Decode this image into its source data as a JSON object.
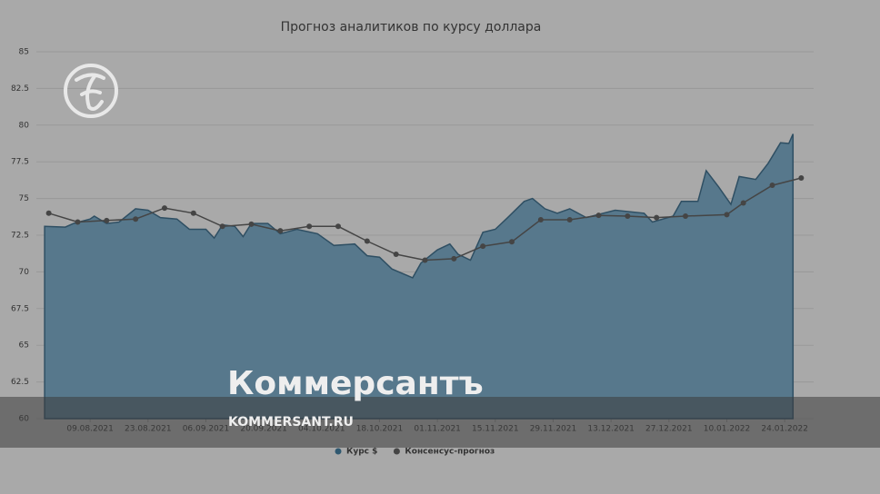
{
  "chart_data": {
    "type": "area-line",
    "title": "Прогноз аналитиков по курсу доллара",
    "xlim": [
      "27.07.2021",
      "31.01.2022"
    ],
    "xticks": [
      "09.08.2021",
      "23.08.2021",
      "06.09.2021",
      "20.09.2021",
      "04.10.2021",
      "18.10.2021",
      "01.11.2021",
      "15.11.2021",
      "29.11.2021",
      "13.12.2021",
      "27.12.2021",
      "10.01.2022",
      "24.01.2022"
    ],
    "ylim": [
      60,
      85
    ],
    "yticks": [
      60,
      62.5,
      65,
      67.5,
      70,
      72.5,
      75,
      77.5,
      80,
      82.5,
      85
    ],
    "grid": true,
    "series": [
      {
        "name": "Курс $",
        "color": "#57788c",
        "style": "area",
        "x": [
          "29.07.2021",
          "03.08.2021",
          "05.08.2021",
          "09.08.2021",
          "10.08.2021",
          "13.08.2021",
          "16.08.2021",
          "20.08.2021",
          "23.08.2021",
          "26.08.2021",
          "30.08.2021",
          "02.09.2021",
          "06.09.2021",
          "08.09.2021",
          "10.09.2021",
          "13.09.2021",
          "15.09.2021",
          "17.09.2021",
          "21.09.2021",
          "24.09.2021",
          "28.09.2021",
          "03.10.2021",
          "07.10.2021",
          "12.10.2021",
          "15.10.2021",
          "18.10.2021",
          "21.10.2021",
          "26.10.2021",
          "28.10.2021",
          "01.11.2021",
          "04.11.2021",
          "06.11.2021",
          "09.11.2021",
          "12.11.2021",
          "15.11.2021",
          "18.11.2021",
          "22.11.2021",
          "24.11.2021",
          "27.11.2021",
          "30.11.2021",
          "03.12.2021",
          "07.12.2021",
          "14.12.2021",
          "21.12.2021",
          "23.12.2021",
          "28.12.2021",
          "30.12.2021",
          "03.01.2022",
          "05.01.2022",
          "08.01.2022",
          "11.01.2022",
          "13.01.2022",
          "17.01.2022",
          "20.01.2022",
          "23.01.2022",
          "25.01.2022",
          "26.01.2022"
        ],
        "values": [
          73.1,
          73.05,
          73.3,
          73.6,
          73.8,
          73.3,
          73.4,
          74.3,
          74.2,
          73.7,
          73.6,
          72.9,
          72.9,
          72.3,
          73.2,
          73.1,
          72.4,
          73.3,
          73.3,
          72.6,
          72.9,
          72.6,
          71.8,
          71.9,
          71.1,
          71.0,
          70.2,
          69.6,
          70.6,
          71.5,
          71.9,
          71.2,
          70.8,
          72.7,
          72.9,
          73.7,
          74.8,
          75.0,
          74.3,
          74.0,
          74.3,
          73.7,
          74.2,
          74.0,
          73.4,
          73.8,
          74.8,
          74.8,
          76.9,
          75.8,
          74.6,
          76.5,
          76.3,
          77.4,
          78.8,
          78.75,
          79.4
        ]
      },
      {
        "name": "Консенсус-прогноз",
        "color": "#454545",
        "style": "line",
        "x": [
          "30.07.2021",
          "06.08.2021",
          "13.08.2021",
          "20.08.2021",
          "27.08.2021",
          "03.09.2021",
          "10.09.2021",
          "17.09.2021",
          "24.09.2021",
          "01.10.2021",
          "08.10.2021",
          "15.10.2021",
          "22.10.2021",
          "29.10.2021",
          "05.11.2021",
          "12.11.2021",
          "19.11.2021",
          "26.11.2021",
          "03.12.2021",
          "10.12.2021",
          "17.12.2021",
          "24.12.2021",
          "31.12.2021",
          "10.01.2022",
          "14.01.2022",
          "21.01.2022",
          "28.01.2022"
        ],
        "values": [
          74.0,
          73.4,
          73.5,
          73.6,
          74.35,
          74.0,
          73.1,
          73.25,
          72.8,
          73.1,
          73.1,
          72.1,
          71.2,
          70.8,
          70.9,
          71.75,
          72.05,
          73.55,
          73.55,
          73.85,
          73.8,
          73.7,
          73.8,
          73.9,
          74.7,
          75.9,
          76.4
        ]
      }
    ]
  },
  "overlay": {
    "brand": "Коммерсантъ",
    "site": "KOMMERSANT.RU"
  }
}
